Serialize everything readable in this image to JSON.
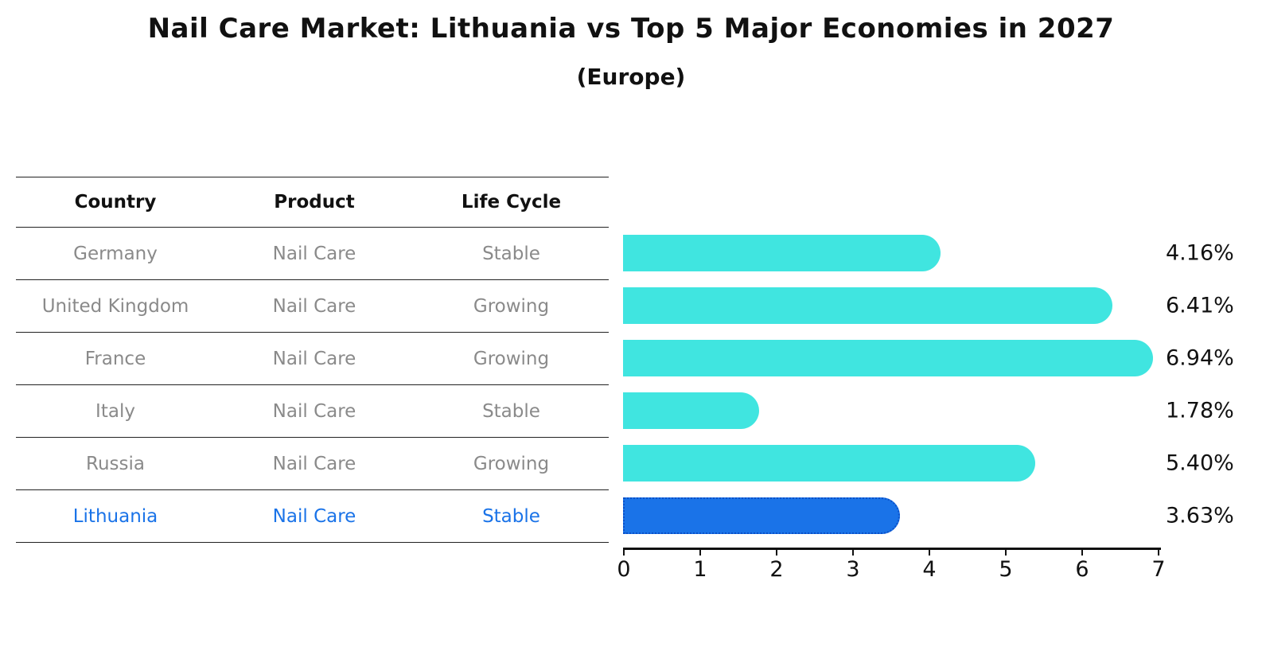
{
  "title": "Nail Care Market: Lithuania vs Top 5 Major Economies in 2027",
  "subtitle": "(Europe)",
  "table": {
    "headers": [
      "Country",
      "Product",
      "Life Cycle"
    ],
    "rows": [
      {
        "country": "Germany",
        "product": "Nail Care",
        "life_cycle": "Stable"
      },
      {
        "country": "United Kingdom",
        "product": "Nail Care",
        "life_cycle": "Growing"
      },
      {
        "country": "France",
        "product": "Nail Care",
        "life_cycle": "Growing"
      },
      {
        "country": "Italy",
        "product": "Nail Care",
        "life_cycle": "Stable"
      },
      {
        "country": "Russia",
        "product": "Nail Care",
        "life_cycle": "Growing"
      },
      {
        "country": "Lithuania",
        "product": "Nail Care",
        "life_cycle": "Stable"
      }
    ]
  },
  "chart_data": {
    "type": "bar",
    "orientation": "horizontal",
    "title": "Nail Care Market: Lithuania vs Top 5 Major Economies in 2027",
    "subtitle": "(Europe)",
    "categories": [
      "Germany",
      "United Kingdom",
      "France",
      "Italy",
      "Russia",
      "Lithuania"
    ],
    "values": [
      4.16,
      6.41,
      6.94,
      1.78,
      5.4,
      3.63
    ],
    "labels": [
      "4.16%",
      "6.41%",
      "6.94%",
      "1.78%",
      "5.40%",
      "3.63%"
    ],
    "x_ticks": [
      "0",
      "1",
      "2",
      "3",
      "4",
      "5",
      "6",
      "7"
    ],
    "xlim": [
      0,
      7
    ],
    "grid": false,
    "legend": "none",
    "bar_color": "#40E5E0",
    "highlight_color": "#1A73E8",
    "highlight_border": "#0B50C8",
    "highlight_index": 5,
    "highlight_category": "Lithuania"
  },
  "colors": {
    "text_primary": "#111111",
    "text_muted": "#8a8a8a",
    "accent_blue": "#1a73e8",
    "bar_cyan": "#40E5E0"
  }
}
